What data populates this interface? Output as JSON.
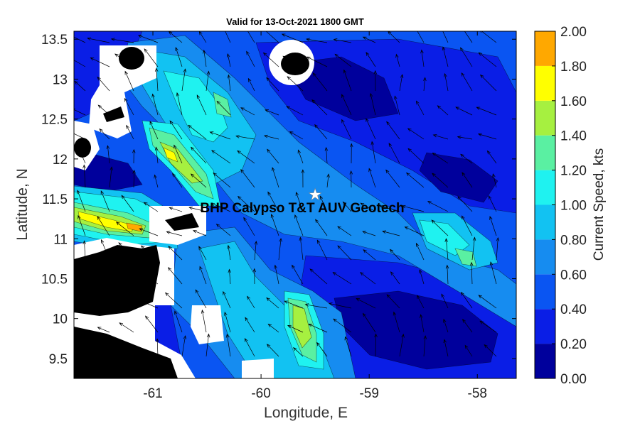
{
  "chart_data": {
    "type": "contour",
    "title": "Valid for 13-Oct-2021 1800 GMT",
    "x_label": "Longitude, E",
    "y_label": "Latitude, N",
    "xlim": [
      -61.73,
      -57.64
    ],
    "ylim": [
      9.25,
      13.6
    ],
    "xticks": [
      -61,
      -60,
      -59,
      -58
    ],
    "yticks": [
      9.5,
      10,
      10.5,
      11,
      11.5,
      12,
      12.5,
      13,
      13.5
    ],
    "annotation": "BHP Calypso T&T AUV Geotech",
    "site": {
      "x": -59.5,
      "y": 11.55
    },
    "colorbar": {
      "label": "Current Speed, kts",
      "lim": [
        0,
        2
      ],
      "ticks": [
        {
          "value": 0,
          "label": "0.00"
        },
        {
          "value": 0.2,
          "label": "0.20"
        },
        {
          "value": 0.4,
          "label": "0.40"
        },
        {
          "value": 0.6,
          "label": "0.60"
        },
        {
          "value": 0.8,
          "label": "0.80"
        },
        {
          "value": 1,
          "label": "1.00"
        },
        {
          "value": 1.2,
          "label": "1.20"
        },
        {
          "value": 1.4,
          "label": "1.40"
        },
        {
          "value": 1.6,
          "label": "1.60"
        },
        {
          "value": 1.8,
          "label": "1.80"
        },
        {
          "value": 2,
          "label": "2.00"
        }
      ],
      "colors": [
        "#00009c",
        "#0a1ee6",
        "#0a55f2",
        "#168cf0",
        "#12c2f2",
        "#1ff2f0",
        "#5af0a2",
        "#a6f040",
        "#ffff00",
        "#ffa800"
      ]
    }
  }
}
